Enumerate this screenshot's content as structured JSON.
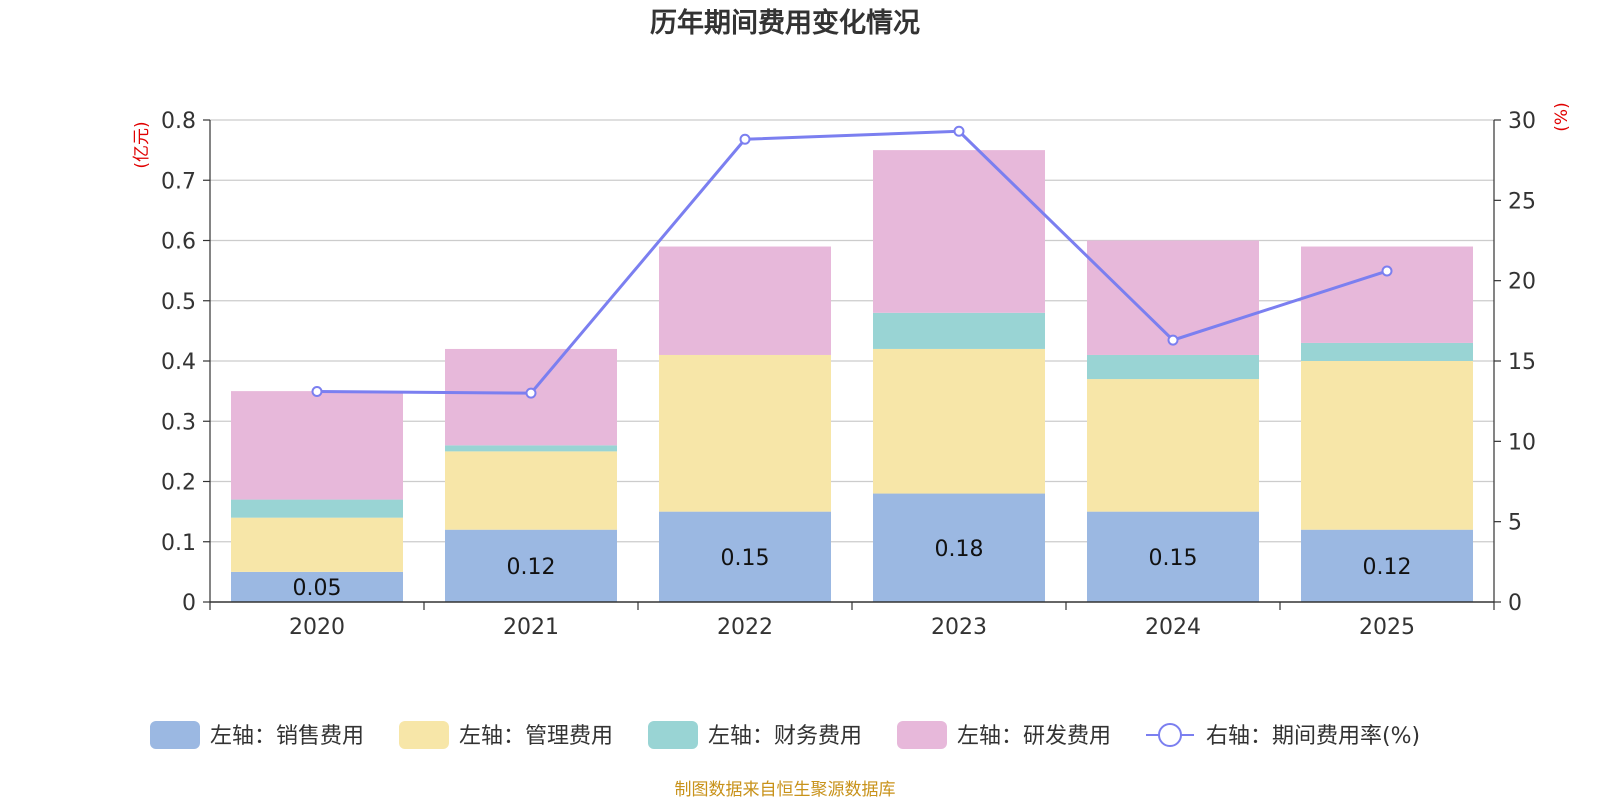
{
  "chart_data": {
    "type": "bar",
    "title": "历年期间费用变化情况",
    "categories": [
      "2020",
      "2021",
      "2022",
      "2023",
      "2024",
      "2025"
    ],
    "left_axis": {
      "unit": "(亿元)",
      "range": [
        0,
        0.8
      ],
      "ticks": [
        "0",
        "0.1",
        "0.2",
        "0.3",
        "0.4",
        "0.5",
        "0.6",
        "0.7",
        "0.8"
      ]
    },
    "right_axis": {
      "unit": "(%)",
      "range": [
        0,
        30
      ],
      "ticks": [
        "0",
        "5",
        "10",
        "15",
        "20",
        "25",
        "30"
      ]
    },
    "series": [
      {
        "name": "左轴：销售费用",
        "axis": "left",
        "type": "bar",
        "color": "#9bb8e2",
        "values": [
          0.05,
          0.12,
          0.15,
          0.18,
          0.15,
          0.12
        ],
        "labels": [
          "0.05",
          "0.12",
          "0.15",
          "0.18",
          "0.15",
          "0.12"
        ]
      },
      {
        "name": "左轴：管理费用",
        "axis": "left",
        "type": "bar",
        "color": "#f7e6a8",
        "values": [
          0.09,
          0.13,
          0.26,
          0.24,
          0.22,
          0.28
        ]
      },
      {
        "name": "左轴：财务费用",
        "axis": "left",
        "type": "bar",
        "color": "#99d4d4",
        "values": [
          0.03,
          0.01,
          0.0,
          0.06,
          0.04,
          0.03
        ]
      },
      {
        "name": "左轴：研发费用",
        "axis": "left",
        "type": "bar",
        "color": "#e7b8da",
        "values": [
          0.18,
          0.16,
          0.18,
          0.27,
          0.19,
          0.16
        ]
      },
      {
        "name": "右轴：期间费用率(%)",
        "axis": "right",
        "type": "line",
        "color": "#7b7ff0",
        "values": [
          13.1,
          13.0,
          28.8,
          29.3,
          16.3,
          20.6
        ]
      }
    ],
    "grid": true,
    "legend_position": "bottom"
  },
  "source": "制图数据来自恒生聚源数据库"
}
